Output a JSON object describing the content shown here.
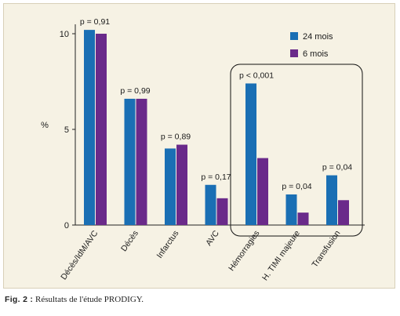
{
  "chart_data": {
    "type": "bar",
    "ylabel": "%",
    "ylim": [
      0,
      11
    ],
    "yticks": [
      0,
      5,
      10
    ],
    "categories": [
      "Décès/IdM/AVC",
      "Décès",
      "Infarctus",
      "AVC",
      "Hémorragies",
      "H. TIMI majeure",
      "Transfusion"
    ],
    "series": [
      {
        "name": "24 mois",
        "color": "#1a6fb4",
        "values": [
          10.2,
          6.6,
          4.0,
          2.1,
          7.4,
          1.6,
          2.6
        ]
      },
      {
        "name": "6 mois",
        "color": "#6a2a8a",
        "values": [
          10.0,
          6.6,
          4.2,
          1.4,
          3.5,
          0.65,
          1.3
        ]
      }
    ],
    "annotations": [
      "p = 0,91",
      "p = 0,99",
      "p = 0,89",
      "p = 0,17",
      "p < 0,001",
      "p = 0,04",
      "p = 0,04"
    ],
    "highlight_box": "Hémorragies through Transfusion",
    "legend_position": "top-right"
  },
  "caption": {
    "label": "Fig. 2 :",
    "text": " Résultats de l'étude PRODIGY."
  },
  "colors": {
    "panel_background": "#f6f2e4",
    "bar_24": "#1a6fb4",
    "bar_6": "#6a2a8a"
  }
}
